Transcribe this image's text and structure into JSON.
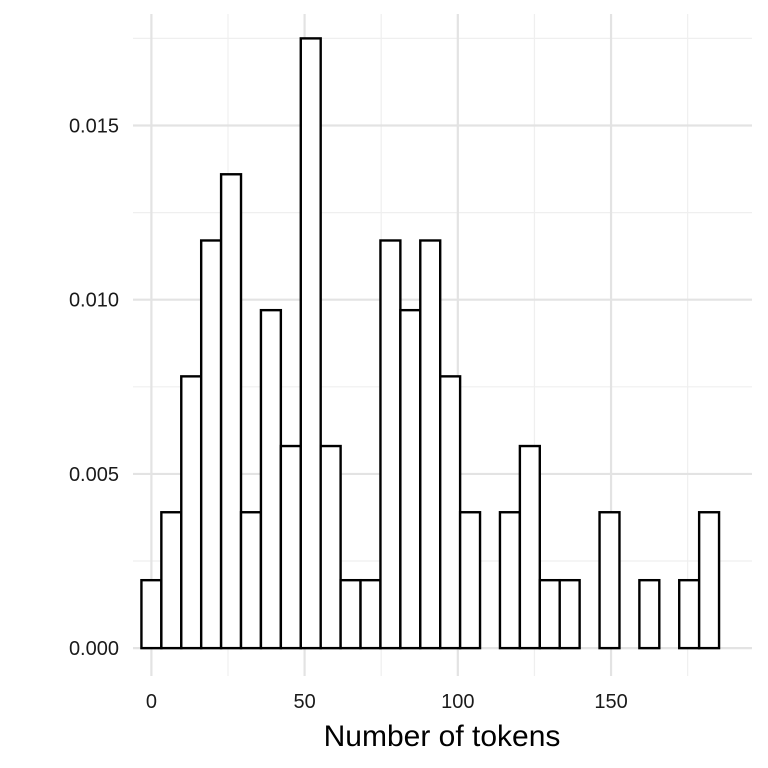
{
  "chart_data": {
    "type": "bar",
    "subtype": "histogram",
    "title": "",
    "xlabel": "Number of tokens",
    "ylabel": "",
    "xlim": [
      -6,
      196
    ],
    "ylim": [
      -0.0008,
      0.0182
    ],
    "x_ticks": [
      0,
      50,
      100,
      150
    ],
    "x_tick_labels": [
      "0",
      "50",
      "100",
      "150"
    ],
    "y_ticks": [
      0,
      0.005,
      0.01,
      0.015
    ],
    "y_tick_labels": [
      "0.000",
      "0.005",
      "0.010",
      "0.015"
    ],
    "x_minor_ticks": [
      25,
      75,
      125,
      175
    ],
    "y_minor_ticks": [
      0.0025,
      0.0075,
      0.0125,
      0.0175
    ],
    "grid": true,
    "bar_fill": "#ffffff",
    "bar_stroke": "#000000",
    "grid_major_color": "#e3e3e3",
    "grid_minor_color": "#efefef",
    "bin_width": 6.5,
    "bin_left_edges": [
      -3.25,
      3.25,
      9.75,
      16.25,
      22.75,
      29.25,
      35.75,
      42.25,
      48.75,
      55.25,
      61.75,
      68.25,
      74.75,
      81.25,
      87.75,
      94.25,
      100.75,
      107.25,
      113.75,
      120.25,
      126.75,
      133.25,
      139.75,
      146.25,
      152.75,
      159.25,
      165.75,
      172.25,
      178.75
    ],
    "values": [
      0.00195,
      0.0039,
      0.0078,
      0.0117,
      0.0136,
      0.0039,
      0.0097,
      0.0058,
      0.0175,
      0.0058,
      0.00195,
      0.00195,
      0.0117,
      0.0097,
      0.0117,
      0.0078,
      0.0039,
      0,
      0.0039,
      0.0058,
      0.00195,
      0.00195,
      0,
      0.0039,
      0,
      0.00195,
      0,
      0.00195,
      0.0039
    ]
  }
}
